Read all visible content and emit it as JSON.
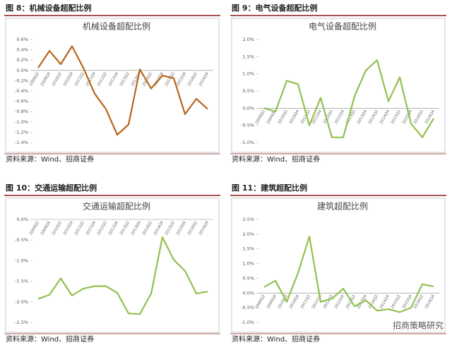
{
  "chart_data": [
    {
      "type": "line",
      "heading": "图 8：机械设备超配比例",
      "title": "机械设备超配比例",
      "source": "资料来源：Wind、招商证券",
      "categories": [
        "2009Q2",
        "2009Q4",
        "2010Q2",
        "2010Q4",
        "2011Q2",
        "2011Q4",
        "2012Q2",
        "2012Q4",
        "2013Q2",
        "2013Q4",
        "2014Q2",
        "2014Q4",
        "2015Q2",
        "2015Q4",
        "2016Q2",
        "2016Q4"
      ],
      "series": [
        {
          "name": "机械设备超配比例",
          "color": "#b8651b",
          "values": [
            0.05,
            0.38,
            0.12,
            0.47,
            0.05,
            -0.45,
            -0.75,
            -1.25,
            -1.05,
            0.02,
            -0.35,
            -0.1,
            -0.15,
            -0.85,
            -0.55,
            -0.75
          ]
        }
      ],
      "ylim": [
        -1.4,
        0.6
      ],
      "yticks": [
        {
          "value": 0.6,
          "label": "0.6%"
        },
        {
          "value": 0.4,
          "label": "0.4%"
        },
        {
          "value": 0.2,
          "label": "0.2%"
        },
        {
          "value": 0,
          "label": "0.0%"
        },
        {
          "value": -0.2,
          "label": "-0.2%"
        },
        {
          "value": -0.4,
          "label": "-0.4%"
        },
        {
          "value": -0.6,
          "label": "-0.6%"
        },
        {
          "value": -0.8,
          "label": "-0.8%"
        },
        {
          "value": -1.0,
          "label": "-1.0%"
        },
        {
          "value": -1.2,
          "label": "-1.2%"
        },
        {
          "value": -1.4,
          "label": "-1.4%"
        }
      ],
      "grid": false
    },
    {
      "type": "line",
      "heading": "图 9：电气设备超配比例",
      "title": "电气设备超配比例",
      "source": "资料来源：Wind、招商证券",
      "categories": [
        "2009Q2",
        "2009Q4",
        "2010Q2",
        "2010Q4",
        "2011Q2",
        "2011Q4",
        "2012Q2",
        "2012Q4",
        "2013Q2",
        "2013Q4",
        "2014Q2",
        "2014Q4",
        "2015Q2",
        "2015Q4",
        "2016Q2",
        "2016Q4"
      ],
      "series": [
        {
          "name": "电气设备超配比例",
          "color": "#92c050",
          "values": [
            0.0,
            -0.1,
            0.8,
            0.7,
            -0.5,
            0.3,
            -0.85,
            -0.85,
            0.35,
            1.1,
            1.4,
            0.2,
            0.9,
            -0.45,
            -0.85,
            -0.3
          ]
        }
      ],
      "ylim": [
        -1.0,
        2.0
      ],
      "yticks": [
        {
          "value": 2.0,
          "label": "2.0%"
        },
        {
          "value": 1.5,
          "label": "1.5%"
        },
        {
          "value": 1.0,
          "label": "1.0%"
        },
        {
          "value": 0.5,
          "label": "0.5%"
        },
        {
          "value": 0,
          "label": "0.0%"
        },
        {
          "value": -0.5,
          "label": "-0.5%"
        },
        {
          "value": -1.0,
          "label": "-1.0%"
        }
      ],
      "grid": false
    },
    {
      "type": "line",
      "heading": "图 10：交通运输超配比例",
      "title": "交通运输超配比例",
      "source": "资料来源：Wind、招商证券",
      "categories": [
        "2009Q2",
        "2009Q4",
        "2010Q2",
        "2010Q4",
        "2011Q2",
        "2011Q4",
        "2012Q2",
        "2012Q4",
        "2013Q2",
        "2013Q4",
        "2014Q2",
        "2014Q4",
        "2015Q2",
        "2015Q4",
        "2016Q2",
        "2016Q4"
      ],
      "series": [
        {
          "name": "交通运输超配比例",
          "color": "#92c050",
          "values": [
            -1.93,
            -1.83,
            -1.43,
            -1.85,
            -1.68,
            -1.62,
            -1.62,
            -1.78,
            -2.28,
            -2.3,
            -1.8,
            -0.43,
            -0.98,
            -1.25,
            -1.8,
            -1.75
          ]
        }
      ],
      "ylim": [
        -2.5,
        0
      ],
      "yticks": [
        {
          "value": 0,
          "label": "0.0%"
        },
        {
          "value": -0.5,
          "label": "-0.5%"
        },
        {
          "value": -1.0,
          "label": "-1.0%"
        },
        {
          "value": -1.5,
          "label": "-1.5%"
        },
        {
          "value": -2.0,
          "label": "-2.0%"
        },
        {
          "value": -2.5,
          "label": "-2.5%"
        }
      ],
      "grid": false
    },
    {
      "type": "line",
      "heading": "图 11：建筑超配比例",
      "title": "建筑超配比例",
      "source": "资料来源：Wind、招商证券",
      "categories": [
        "2009Q2",
        "2009Q4",
        "2010Q2",
        "2010Q4",
        "2011Q2",
        "2011Q4",
        "2012Q2",
        "2012Q4",
        "2013Q2",
        "2013Q4",
        "2014Q2",
        "2014Q4",
        "2015Q2",
        "2015Q4",
        "2016Q2",
        "2016Q4"
      ],
      "series": [
        {
          "name": "建筑超配比例",
          "color": "#92c050",
          "values": [
            0.2,
            0.42,
            -0.3,
            0.68,
            1.92,
            -0.3,
            -0.2,
            0.15,
            -0.45,
            -0.25,
            -0.6,
            -0.55,
            -0.65,
            -0.5,
            0.3,
            0.22
          ]
        }
      ],
      "ylim": [
        -1.0,
        2.5
      ],
      "yticks": [
        {
          "value": 2.5,
          "label": "2.5%"
        },
        {
          "value": 2.0,
          "label": "2.0%"
        },
        {
          "value": 1.5,
          "label": "1.5%"
        },
        {
          "value": 1.0,
          "label": "1.0%"
        },
        {
          "value": 0.5,
          "label": "0.5%"
        },
        {
          "value": 0,
          "label": "0.0%"
        },
        {
          "value": -0.5,
          "label": "-0.5%"
        },
        {
          "value": -1.0,
          "label": "-1.0%"
        }
      ],
      "grid": false
    }
  ],
  "watermark": "招商策略研究"
}
